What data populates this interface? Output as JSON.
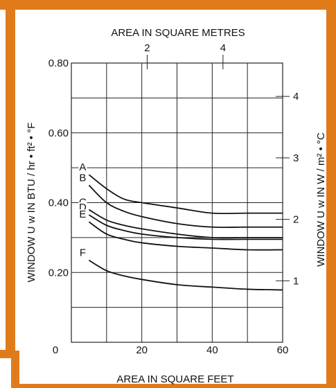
{
  "colors": {
    "frame": "#e07b1a",
    "ink": "#111111",
    "grid": "#222222",
    "background": "#ffffff"
  },
  "chart_data": {
    "type": "line",
    "title": "",
    "xlabel": "AREA IN SQUARE FEET",
    "ylabel": "WINDOW U w IN BTU / hr • ft² • °F",
    "x2label": "AREA IN SQUARE METRES",
    "y2label": "WINDOW U w IN W / m² • °C",
    "xlim": [
      0,
      60
    ],
    "ylim": [
      0,
      0.8
    ],
    "x_ticks": [
      {
        "value": 0,
        "label": "0"
      },
      {
        "value": 20,
        "label": "20"
      },
      {
        "value": 40,
        "label": "40"
      },
      {
        "value": 60,
        "label": "60"
      }
    ],
    "y_ticks": [
      {
        "value": 0.2,
        "label": "0.20"
      },
      {
        "value": 0.4,
        "label": "0.40"
      },
      {
        "value": 0.6,
        "label": "0.60"
      },
      {
        "value": 0.8,
        "label": "0.80"
      }
    ],
    "x2_ticks": [
      {
        "value": 2,
        "label": "2"
      },
      {
        "value": 4,
        "label": "4"
      }
    ],
    "y2_ticks": [
      {
        "value": 1,
        "label": "1"
      },
      {
        "value": 2,
        "label": "2"
      },
      {
        "value": 3,
        "label": "3"
      },
      {
        "value": 4,
        "label": "4"
      }
    ],
    "grid": true,
    "series": [
      {
        "name": "A",
        "x": [
          5,
          10,
          15,
          20,
          30,
          40,
          50,
          60
        ],
        "y": [
          0.48,
          0.44,
          0.41,
          0.4,
          0.385,
          0.37,
          0.37,
          0.37
        ]
      },
      {
        "name": "B",
        "x": [
          5,
          10,
          15,
          20,
          30,
          40,
          50,
          60
        ],
        "y": [
          0.45,
          0.4,
          0.375,
          0.36,
          0.34,
          0.33,
          0.33,
          0.33
        ]
      },
      {
        "name": "C",
        "x": [
          5,
          10,
          15,
          20,
          30,
          40,
          50,
          60
        ],
        "y": [
          0.38,
          0.35,
          0.335,
          0.325,
          0.31,
          0.3,
          0.3,
          0.3
        ]
      },
      {
        "name": "D",
        "x": [
          5,
          10,
          15,
          20,
          30,
          40,
          50,
          60
        ],
        "y": [
          0.365,
          0.335,
          0.32,
          0.31,
          0.3,
          0.295,
          0.295,
          0.295
        ]
      },
      {
        "name": "E",
        "x": [
          5,
          10,
          15,
          20,
          30,
          40,
          50,
          60
        ],
        "y": [
          0.345,
          0.31,
          0.295,
          0.285,
          0.275,
          0.27,
          0.265,
          0.265
        ]
      },
      {
        "name": "F",
        "x": [
          5,
          10,
          15,
          20,
          30,
          40,
          50,
          60
        ],
        "y": [
          0.235,
          0.205,
          0.19,
          0.18,
          0.165,
          0.158,
          0.152,
          0.15
        ]
      }
    ]
  }
}
